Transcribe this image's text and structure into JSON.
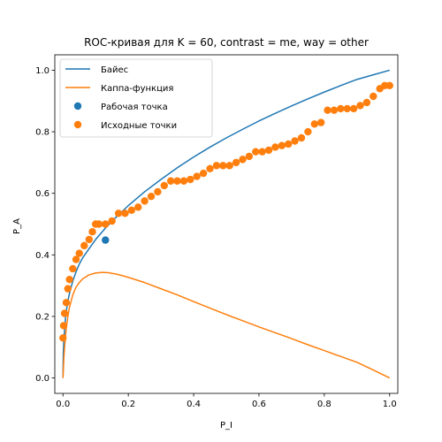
{
  "chart_data": {
    "type": "line",
    "title": "ROC-кривая для K = 60, contrast = me, way = other",
    "xlabel": "P_I",
    "ylabel": "P_A",
    "xlim": [
      -0.025,
      1.025
    ],
    "ylim": [
      -0.05,
      1.05
    ],
    "xticks": [
      0.0,
      0.2,
      0.4,
      0.6,
      0.8,
      1.0
    ],
    "yticks": [
      0.0,
      0.2,
      0.4,
      0.6,
      0.8,
      1.0
    ],
    "xtick_labels": [
      "0.0",
      "0.2",
      "0.4",
      "0.6",
      "0.8",
      "1.0"
    ],
    "ytick_labels": [
      "0.0",
      "0.2",
      "0.4",
      "0.6",
      "0.8",
      "1.0"
    ],
    "grid": false,
    "legend_position": "top-left",
    "colors": {
      "blue": "#1f77b4",
      "orange": "#ff7f0e"
    },
    "series": [
      {
        "name": "Байес",
        "kind": "line",
        "color": "#1f77b4",
        "x": [
          0.0,
          0.001,
          0.003,
          0.005,
          0.008,
          0.01,
          0.015,
          0.02,
          0.03,
          0.04,
          0.05,
          0.06,
          0.08,
          0.1,
          0.13,
          0.16,
          0.2,
          0.25,
          0.3,
          0.35,
          0.4,
          0.45,
          0.5,
          0.55,
          0.6,
          0.65,
          0.7,
          0.75,
          0.8,
          0.85,
          0.9,
          0.95,
          1.0
        ],
        "y": [
          0.0,
          0.08,
          0.13,
          0.16,
          0.2,
          0.215,
          0.25,
          0.275,
          0.315,
          0.345,
          0.37,
          0.39,
          0.42,
          0.45,
          0.487,
          0.52,
          0.56,
          0.605,
          0.645,
          0.683,
          0.718,
          0.75,
          0.78,
          0.808,
          0.835,
          0.86,
          0.884,
          0.907,
          0.929,
          0.95,
          0.97,
          0.985,
          1.0
        ]
      },
      {
        "name": "Каппа-функция",
        "kind": "line",
        "color": "#ff7f0e",
        "x": [
          0.0,
          0.003,
          0.005,
          0.008,
          0.01,
          0.015,
          0.02,
          0.03,
          0.04,
          0.05,
          0.06,
          0.08,
          0.1,
          0.12,
          0.14,
          0.16,
          0.18,
          0.2,
          0.25,
          0.3,
          0.35,
          0.4,
          0.45,
          0.5,
          0.55,
          0.6,
          0.65,
          0.7,
          0.75,
          0.8,
          0.85,
          0.9,
          0.95,
          1.0
        ],
        "y": [
          0.0,
          0.07,
          0.1,
          0.14,
          0.16,
          0.2,
          0.23,
          0.27,
          0.295,
          0.31,
          0.322,
          0.335,
          0.341,
          0.343,
          0.342,
          0.338,
          0.333,
          0.327,
          0.31,
          0.29,
          0.27,
          0.248,
          0.227,
          0.206,
          0.186,
          0.166,
          0.147,
          0.128,
          0.108,
          0.089,
          0.07,
          0.051,
          0.026,
          0.0
        ]
      },
      {
        "name": "Рабочая точка",
        "kind": "scatter",
        "color": "#1f77b4",
        "x": [
          0.13
        ],
        "y": [
          0.448
        ]
      },
      {
        "name": "Исходные точки",
        "kind": "scatter",
        "color": "#ff7f0e",
        "x": [
          0.0,
          0.002,
          0.005,
          0.01,
          0.015,
          0.02,
          0.03,
          0.04,
          0.05,
          0.065,
          0.08,
          0.09,
          0.1,
          0.11,
          0.13,
          0.15,
          0.17,
          0.19,
          0.21,
          0.23,
          0.25,
          0.27,
          0.29,
          0.31,
          0.33,
          0.35,
          0.37,
          0.39,
          0.41,
          0.43,
          0.45,
          0.47,
          0.49,
          0.51,
          0.53,
          0.55,
          0.57,
          0.59,
          0.61,
          0.63,
          0.65,
          0.67,
          0.69,
          0.71,
          0.73,
          0.75,
          0.77,
          0.79,
          0.81,
          0.83,
          0.85,
          0.87,
          0.89,
          0.91,
          0.93,
          0.95,
          0.97,
          0.985,
          1.0
        ],
        "y": [
          0.13,
          0.17,
          0.21,
          0.245,
          0.29,
          0.32,
          0.355,
          0.385,
          0.405,
          0.43,
          0.45,
          0.475,
          0.5,
          0.5,
          0.5,
          0.51,
          0.535,
          0.535,
          0.545,
          0.555,
          0.575,
          0.59,
          0.605,
          0.625,
          0.64,
          0.64,
          0.64,
          0.645,
          0.655,
          0.665,
          0.68,
          0.69,
          0.69,
          0.69,
          0.7,
          0.71,
          0.72,
          0.735,
          0.735,
          0.74,
          0.75,
          0.755,
          0.76,
          0.77,
          0.78,
          0.8,
          0.825,
          0.83,
          0.87,
          0.87,
          0.875,
          0.875,
          0.875,
          0.885,
          0.895,
          0.915,
          0.94,
          0.95,
          0.95
        ]
      }
    ]
  }
}
